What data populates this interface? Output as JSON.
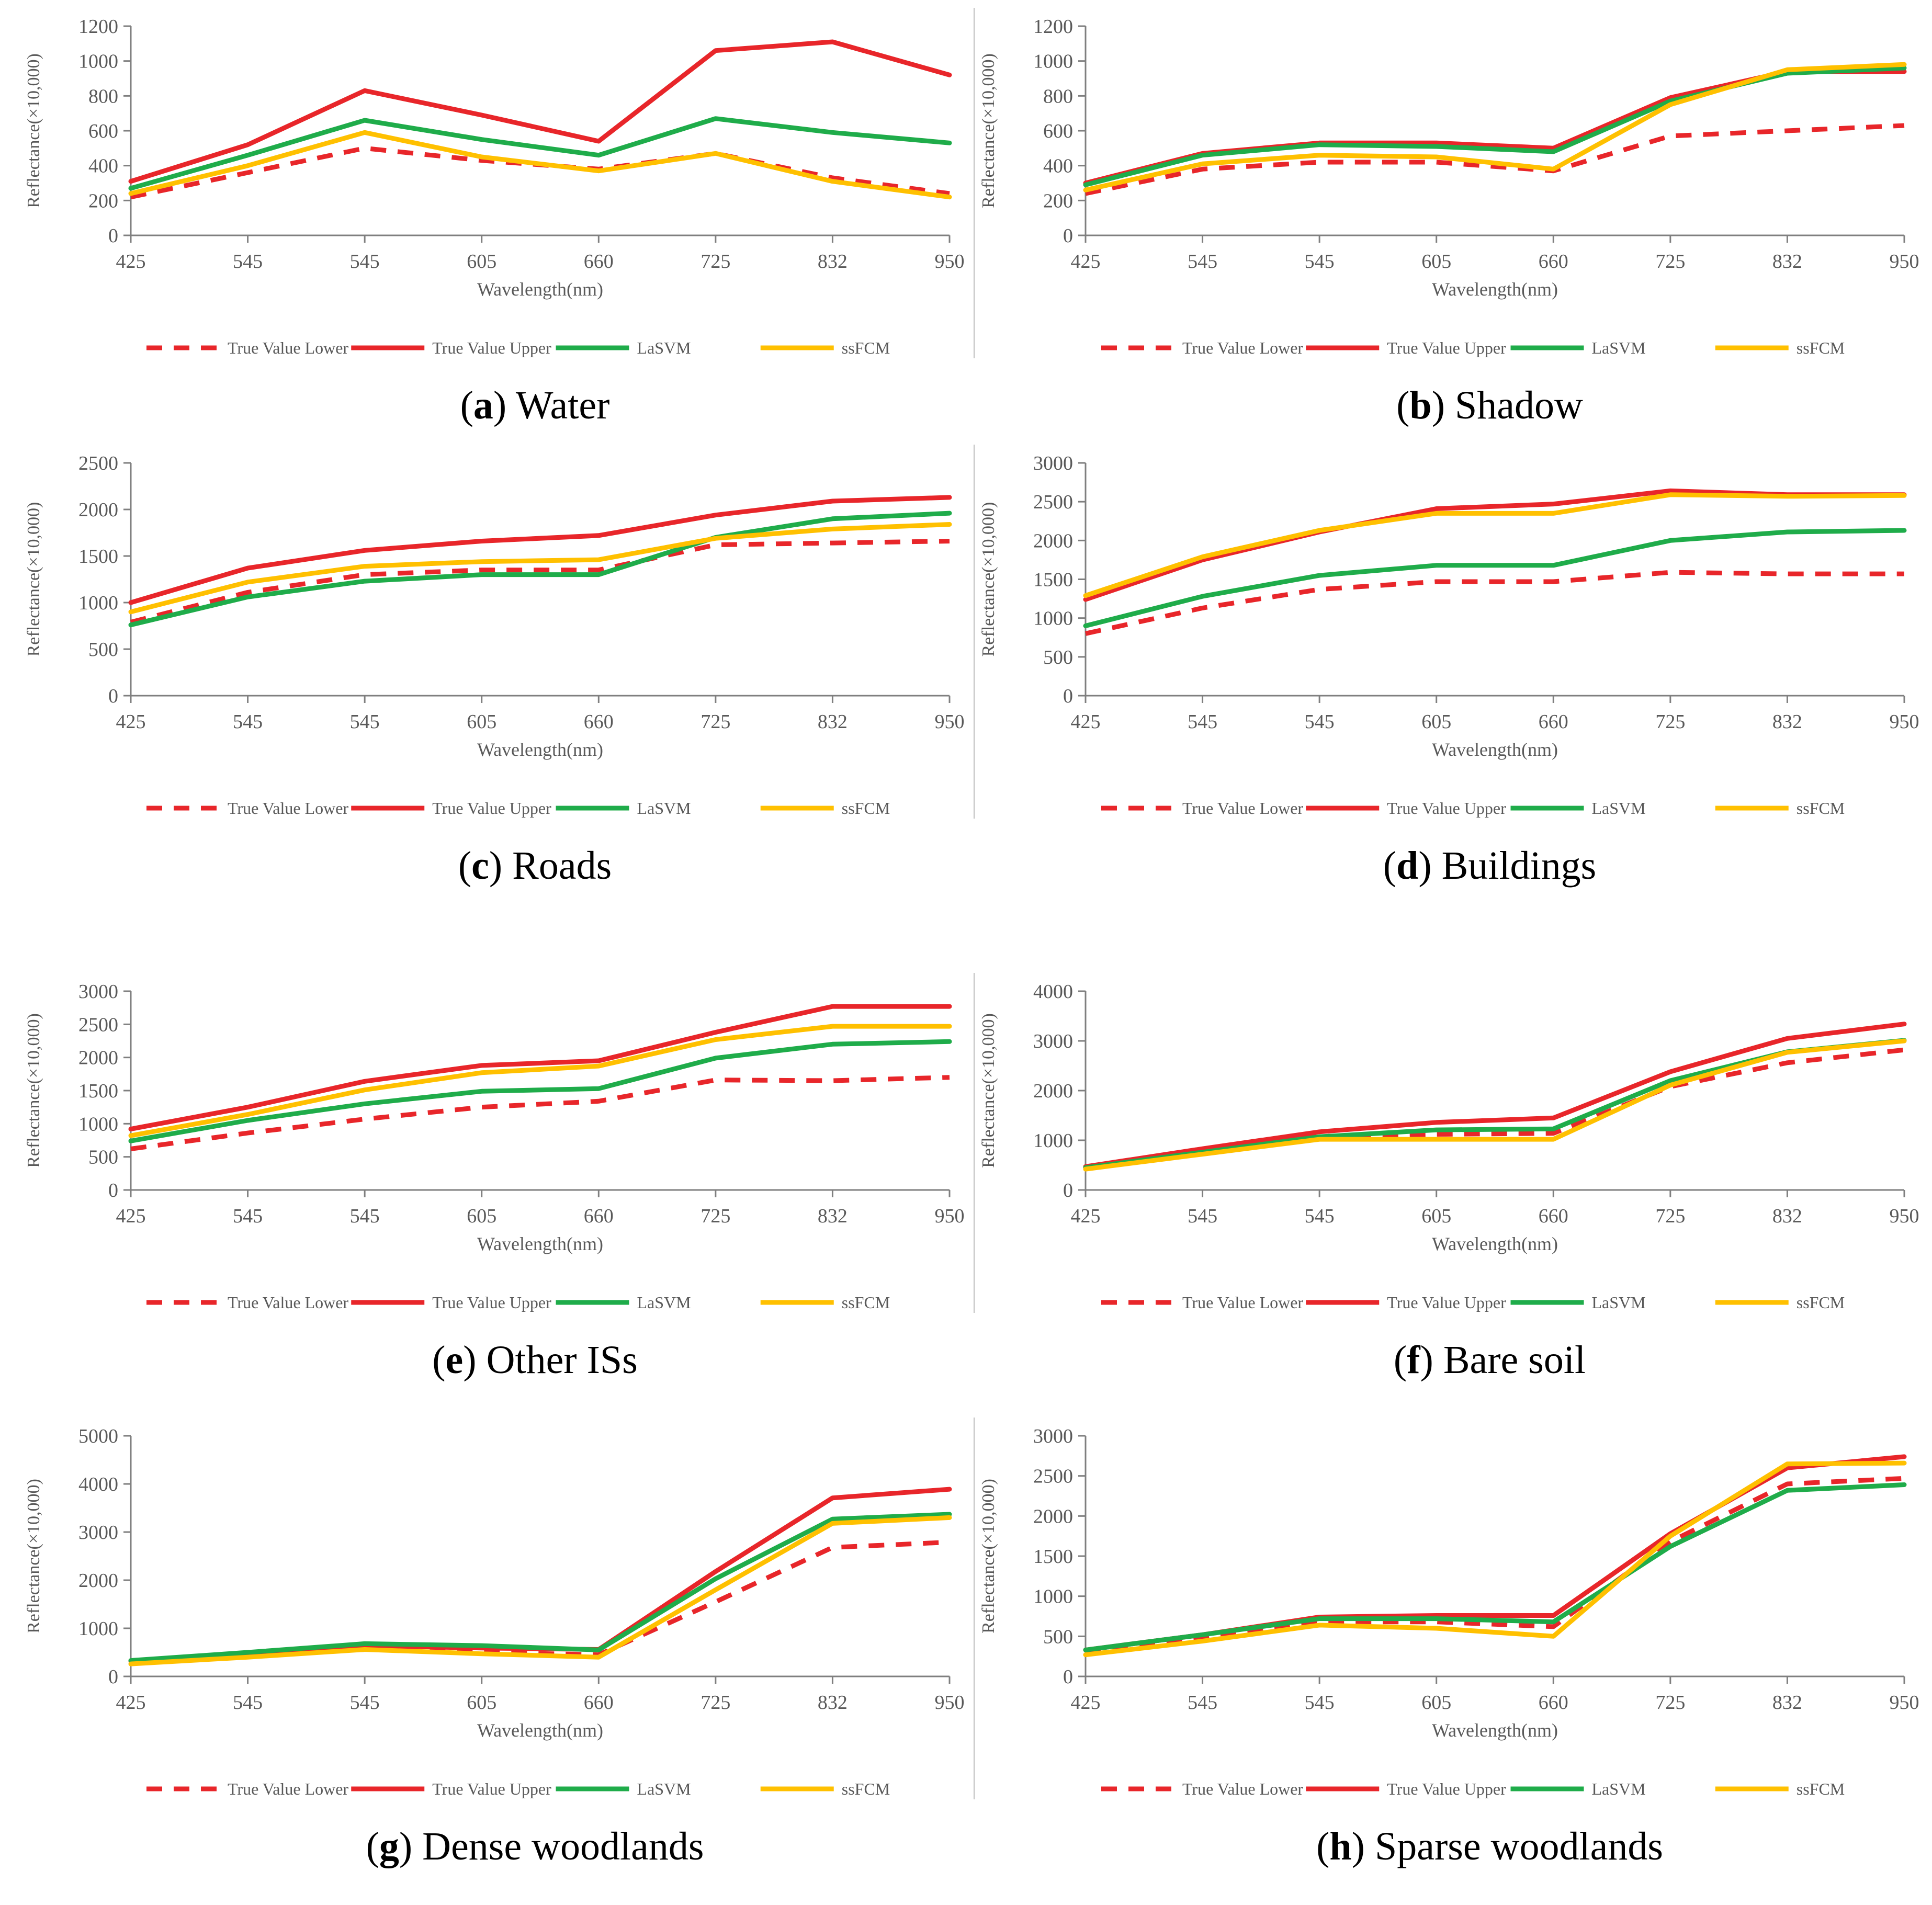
{
  "chart_data": [
    {
      "type": "line",
      "caption": {
        "letter": "a",
        "title": "Water"
      },
      "categories": [
        "425",
        "545",
        "545",
        "605",
        "660",
        "725",
        "832",
        "950"
      ],
      "xlabel": "Wavelength(nm)",
      "ylabel": "Reflectance(×10,000)",
      "ylim": [
        0,
        1200
      ],
      "yticks": [
        0,
        200,
        400,
        600,
        800,
        1000,
        1200
      ],
      "grid": false,
      "legend_position": "bottom",
      "series": [
        {
          "name": "True Value Lower",
          "color": "#e8262a",
          "dashed": true,
          "values": [
            220,
            360,
            500,
            430,
            380,
            470,
            330,
            240
          ]
        },
        {
          "name": "True Value Upper",
          "color": "#e8262a",
          "dashed": false,
          "values": [
            310,
            520,
            830,
            690,
            540,
            1060,
            1110,
            920
          ]
        },
        {
          "name": "LaSVM",
          "color": "#1fac4a",
          "dashed": false,
          "values": [
            270,
            460,
            660,
            550,
            460,
            670,
            590,
            530
          ]
        },
        {
          "name": "ssFCM",
          "color": "#ffc000",
          "dashed": false,
          "values": [
            240,
            400,
            590,
            450,
            370,
            470,
            310,
            220
          ]
        }
      ]
    },
    {
      "type": "line",
      "caption": {
        "letter": "b",
        "title": "Shadow"
      },
      "categories": [
        "425",
        "545",
        "545",
        "605",
        "660",
        "725",
        "832",
        "950"
      ],
      "xlabel": "Wavelength(nm)",
      "ylabel": "Reflectance(×10,000)",
      "ylim": [
        0,
        1200
      ],
      "yticks": [
        0,
        200,
        400,
        600,
        800,
        1000,
        1200
      ],
      "grid": false,
      "legend_position": "bottom",
      "series": [
        {
          "name": "True Value Lower",
          "color": "#e8262a",
          "dashed": true,
          "values": [
            240,
            380,
            420,
            420,
            370,
            570,
            600,
            630
          ]
        },
        {
          "name": "True Value Upper",
          "color": "#e8262a",
          "dashed": false,
          "values": [
            300,
            470,
            530,
            530,
            500,
            790,
            940,
            940
          ]
        },
        {
          "name": "LaSVM",
          "color": "#1fac4a",
          "dashed": false,
          "values": [
            290,
            460,
            520,
            510,
            480,
            770,
            930,
            960
          ]
        },
        {
          "name": "ssFCM",
          "color": "#ffc000",
          "dashed": false,
          "values": [
            260,
            410,
            460,
            450,
            380,
            750,
            950,
            980
          ]
        }
      ]
    },
    {
      "type": "line",
      "caption": {
        "letter": "c",
        "title": "Roads"
      },
      "categories": [
        "425",
        "545",
        "545",
        "605",
        "660",
        "725",
        "832",
        "950"
      ],
      "xlabel": "Wavelength(nm)",
      "ylabel": "Reflectance(×10,000)",
      "ylim": [
        0,
        2500
      ],
      "yticks": [
        0,
        500,
        1000,
        1500,
        2000,
        2500
      ],
      "grid": false,
      "legend_position": "bottom",
      "series": [
        {
          "name": "True Value Lower",
          "color": "#e8262a",
          "dashed": true,
          "values": [
            790,
            1110,
            1300,
            1350,
            1350,
            1620,
            1640,
            1660
          ]
        },
        {
          "name": "True Value Upper",
          "color": "#e8262a",
          "dashed": false,
          "values": [
            1000,
            1370,
            1560,
            1660,
            1720,
            1940,
            2090,
            2130
          ]
        },
        {
          "name": "LaSVM",
          "color": "#1fac4a",
          "dashed": false,
          "values": [
            760,
            1060,
            1230,
            1300,
            1300,
            1700,
            1900,
            1960
          ]
        },
        {
          "name": "ssFCM",
          "color": "#ffc000",
          "dashed": false,
          "values": [
            900,
            1220,
            1390,
            1440,
            1460,
            1690,
            1790,
            1840
          ]
        }
      ]
    },
    {
      "type": "line",
      "caption": {
        "letter": "d",
        "title": "Buildings"
      },
      "categories": [
        "425",
        "545",
        "545",
        "605",
        "660",
        "725",
        "832",
        "950"
      ],
      "xlabel": "Wavelength(nm)",
      "ylabel": "Reflectance(×10,000)",
      "ylim": [
        0,
        3000
      ],
      "yticks": [
        0,
        500,
        1000,
        1500,
        2000,
        2500,
        3000
      ],
      "grid": false,
      "legend_position": "bottom",
      "series": [
        {
          "name": "True Value Lower",
          "color": "#e8262a",
          "dashed": true,
          "values": [
            800,
            1130,
            1370,
            1470,
            1470,
            1590,
            1570,
            1570
          ]
        },
        {
          "name": "True Value Upper",
          "color": "#e8262a",
          "dashed": false,
          "values": [
            1240,
            1750,
            2110,
            2410,
            2470,
            2640,
            2590,
            2590
          ]
        },
        {
          "name": "LaSVM",
          "color": "#1fac4a",
          "dashed": false,
          "values": [
            900,
            1280,
            1550,
            1680,
            1680,
            2000,
            2110,
            2130
          ]
        },
        {
          "name": "ssFCM",
          "color": "#ffc000",
          "dashed": false,
          "values": [
            1290,
            1790,
            2130,
            2350,
            2350,
            2590,
            2570,
            2580
          ]
        }
      ]
    },
    {
      "type": "line",
      "caption": {
        "letter": "e",
        "title": "Other ISs"
      },
      "categories": [
        "425",
        "545",
        "545",
        "605",
        "660",
        "725",
        "832",
        "950"
      ],
      "xlabel": "Wavelength(nm)",
      "ylabel": "Reflectance(×10,000)",
      "ylim": [
        0,
        3000
      ],
      "yticks": [
        0,
        500,
        1000,
        1500,
        2000,
        2500,
        3000
      ],
      "grid": false,
      "legend_position": "bottom",
      "series": [
        {
          "name": "True Value Lower",
          "color": "#e8262a",
          "dashed": true,
          "values": [
            620,
            860,
            1070,
            1250,
            1340,
            1660,
            1650,
            1700
          ]
        },
        {
          "name": "True Value Upper",
          "color": "#e8262a",
          "dashed": false,
          "values": [
            920,
            1250,
            1640,
            1880,
            1950,
            2380,
            2770,
            2770
          ]
        },
        {
          "name": "LaSVM",
          "color": "#1fac4a",
          "dashed": false,
          "values": [
            740,
            1050,
            1300,
            1490,
            1530,
            1990,
            2200,
            2240
          ]
        },
        {
          "name": "ssFCM",
          "color": "#ffc000",
          "dashed": false,
          "values": [
            820,
            1140,
            1510,
            1770,
            1870,
            2270,
            2470,
            2470
          ]
        }
      ]
    },
    {
      "type": "line",
      "caption": {
        "letter": "f",
        "title": "Bare soil"
      },
      "categories": [
        "425",
        "545",
        "545",
        "605",
        "660",
        "725",
        "832",
        "950"
      ],
      "xlabel": "Wavelength(nm)",
      "ylabel": "Reflectance(×10,000)",
      "ylim": [
        0,
        4000
      ],
      "yticks": [
        0,
        1000,
        2000,
        3000,
        4000
      ],
      "grid": false,
      "legend_position": "bottom",
      "series": [
        {
          "name": "True Value Lower",
          "color": "#e8262a",
          "dashed": true,
          "values": [
            430,
            770,
            1080,
            1120,
            1140,
            2080,
            2560,
            2820
          ]
        },
        {
          "name": "True Value Upper",
          "color": "#e8262a",
          "dashed": false,
          "values": [
            470,
            830,
            1170,
            1360,
            1450,
            2380,
            3050,
            3340
          ]
        },
        {
          "name": "LaSVM",
          "color": "#1fac4a",
          "dashed": false,
          "values": [
            450,
            760,
            1070,
            1210,
            1230,
            2200,
            2780,
            3010
          ]
        },
        {
          "name": "ssFCM",
          "color": "#ffc000",
          "dashed": false,
          "values": [
            420,
            720,
            1020,
            1020,
            1020,
            2110,
            2770,
            3000
          ]
        }
      ]
    },
    {
      "type": "line",
      "caption": {
        "letter": "g",
        "title": "Dense woodlands"
      },
      "categories": [
        "425",
        "545",
        "545",
        "605",
        "660",
        "725",
        "832",
        "950"
      ],
      "xlabel": "Wavelength(nm)",
      "ylabel": "Reflectance(×10,000)",
      "ylim": [
        0,
        5000
      ],
      "yticks": [
        0,
        1000,
        2000,
        3000,
        4000,
        5000
      ],
      "grid": false,
      "legend_position": "bottom",
      "series": [
        {
          "name": "True Value Lower",
          "color": "#e8262a",
          "dashed": true,
          "values": [
            300,
            450,
            560,
            500,
            450,
            1550,
            2680,
            2790
          ]
        },
        {
          "name": "True Value Upper",
          "color": "#e8262a",
          "dashed": false,
          "values": [
            320,
            490,
            640,
            590,
            560,
            2180,
            3710,
            3890
          ]
        },
        {
          "name": "LaSVM",
          "color": "#1fac4a",
          "dashed": false,
          "values": [
            330,
            500,
            680,
            640,
            550,
            2030,
            3270,
            3370
          ]
        },
        {
          "name": "ssFCM",
          "color": "#ffc000",
          "dashed": false,
          "values": [
            260,
            400,
            560,
            470,
            400,
            1800,
            3180,
            3300
          ]
        }
      ]
    },
    {
      "type": "line",
      "caption": {
        "letter": "h",
        "title": "Sparse woodlands"
      },
      "categories": [
        "425",
        "545",
        "545",
        "605",
        "660",
        "725",
        "832",
        "950"
      ],
      "xlabel": "Wavelength(nm)",
      "ylabel": "Reflectance(×10,000)",
      "ylim": [
        0,
        3000
      ],
      "yticks": [
        0,
        500,
        1000,
        1500,
        2000,
        2500,
        3000
      ],
      "grid": false,
      "legend_position": "bottom",
      "series": [
        {
          "name": "True Value Lower",
          "color": "#e8262a",
          "dashed": true,
          "values": [
            300,
            490,
            680,
            680,
            620,
            1680,
            2400,
            2470
          ]
        },
        {
          "name": "True Value Upper",
          "color": "#e8262a",
          "dashed": false,
          "values": [
            330,
            520,
            740,
            760,
            760,
            1780,
            2600,
            2740
          ]
        },
        {
          "name": "LaSVM",
          "color": "#1fac4a",
          "dashed": false,
          "values": [
            330,
            520,
            720,
            720,
            680,
            1620,
            2320,
            2390
          ]
        },
        {
          "name": "ssFCM",
          "color": "#ffc000",
          "dashed": false,
          "values": [
            270,
            440,
            640,
            600,
            500,
            1750,
            2650,
            2660
          ]
        }
      ]
    }
  ]
}
